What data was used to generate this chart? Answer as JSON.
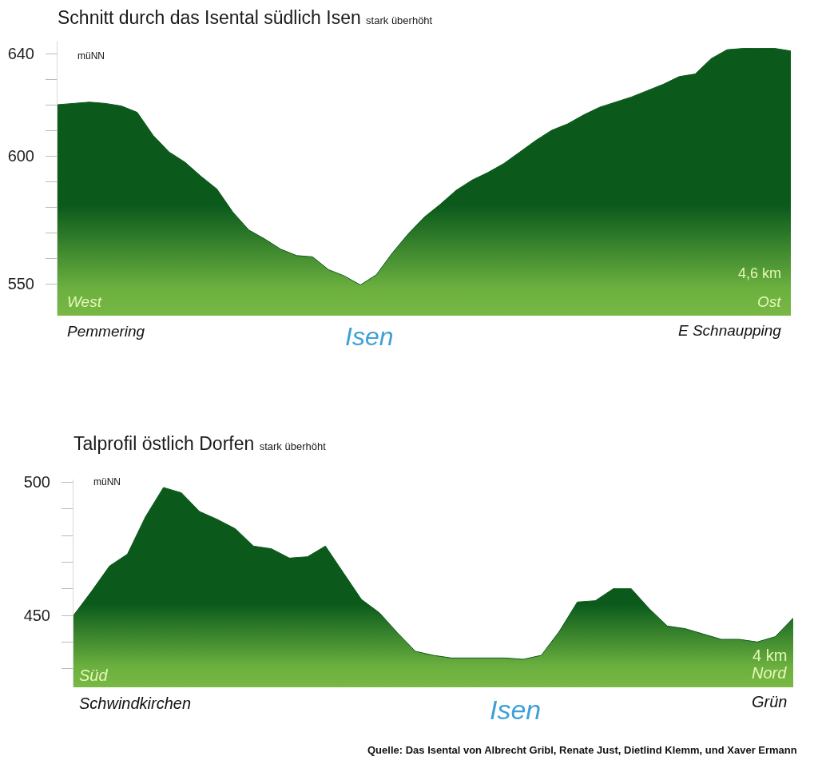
{
  "chart_data": [
    {
      "type": "area",
      "title": "Schnitt durch das Isental südlich Isen",
      "subtitle": "stark überhöht",
      "color": "#0b5a1c",
      "categories": [
        null,
        null,
        null,
        null,
        null,
        null,
        null,
        null,
        null,
        null,
        null,
        null,
        null,
        null,
        null,
        null,
        null,
        null,
        null,
        null,
        null,
        null,
        null,
        null,
        null,
        null,
        null,
        null,
        null,
        null,
        null,
        null,
        null,
        null,
        null,
        null,
        null,
        null,
        null,
        null,
        null,
        null,
        null,
        null,
        null,
        null,
        null
      ],
      "values": [
        620,
        620.5,
        621,
        620.5,
        619.5,
        617,
        608,
        601.5,
        597.5,
        592,
        587,
        578,
        571,
        567.5,
        563.5,
        561,
        560.5,
        555.5,
        553,
        549.5,
        553.5,
        562,
        569.5,
        576,
        581,
        586.5,
        590.5,
        593.5,
        597,
        601.5,
        606,
        610,
        612.5,
        616,
        619,
        621,
        623,
        625.5,
        628,
        631,
        632,
        638,
        641.5,
        642,
        642,
        642,
        641
      ],
      "ylim": [
        537.5,
        645
      ],
      "yticks": [
        550,
        {
          "value": 560,
          "label": null
        },
        {
          "value": 570,
          "label": null
        },
        {
          "value": 580,
          "label": null
        },
        {
          "value": 590,
          "label": null
        },
        600,
        {
          "value": 610,
          "label": null
        },
        {
          "value": 620,
          "label": null
        },
        {
          "value": 630,
          "label": null
        },
        640
      ],
      "annotations": [
        "müNN",
        "West",
        "Ost",
        "4,6 km",
        "Pemmering",
        "Isen",
        "E Schnaupping"
      ]
    },
    {
      "type": "area",
      "title": "Talprofil östlich Dorfen",
      "subtitle": "stark überhöht",
      "color": "#0b5a1c",
      "categories": [
        null,
        null,
        null,
        null,
        null,
        null,
        null,
        null,
        null,
        null,
        null,
        null,
        null,
        null,
        null,
        null,
        null,
        null,
        null,
        null,
        null,
        null,
        null,
        null,
        null,
        null,
        null,
        null,
        null,
        null,
        null,
        null,
        null,
        null,
        null,
        null,
        null,
        null,
        null,
        null,
        null
      ],
      "values": [
        450,
        459,
        468.5,
        473,
        487,
        498,
        496,
        489,
        486,
        482.5,
        476,
        475,
        471.5,
        472,
        476,
        466,
        456,
        451,
        443.5,
        436.5,
        435,
        434,
        434,
        434,
        434,
        433.5,
        435,
        444,
        455,
        455.5,
        460,
        460,
        452.5,
        446,
        445,
        443,
        441,
        441,
        440,
        442,
        449
      ],
      "ylim": [
        423,
        501
      ],
      "yticks": [
        {
          "value": 430,
          "label": null
        },
        {
          "value": 440,
          "label": null
        },
        450,
        {
          "value": 460,
          "label": null
        },
        {
          "value": 470,
          "label": null
        },
        {
          "value": 480,
          "label": null
        },
        {
          "value": 490,
          "label": null
        },
        500
      ],
      "annotations": [
        "müNN",
        "Süd",
        "Nord",
        "4 km",
        "Schwindkirchen",
        "Isen",
        "Grün",
        "Quelle: Das Isental von Albrecht Gribl, Renate Just, Dietlind Klemm, und Xaver Ermann"
      ]
    }
  ]
}
